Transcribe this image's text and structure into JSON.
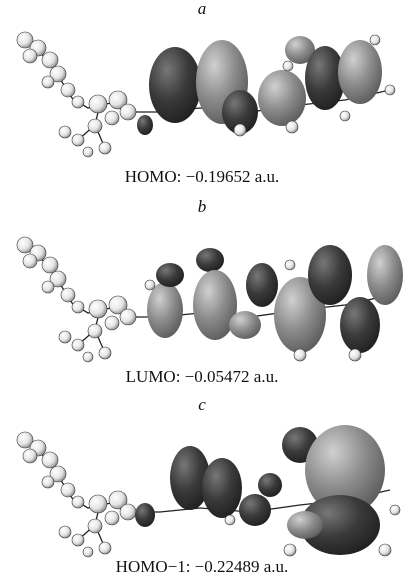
{
  "panels": [
    {
      "label": "a",
      "caption": "HOMO: −0.19652 a.u."
    },
    {
      "label": "b",
      "caption": "LUMO: −0.05472 a.u."
    },
    {
      "label": "c",
      "caption": "HOMO−1: −0.22489 a.u."
    }
  ]
}
